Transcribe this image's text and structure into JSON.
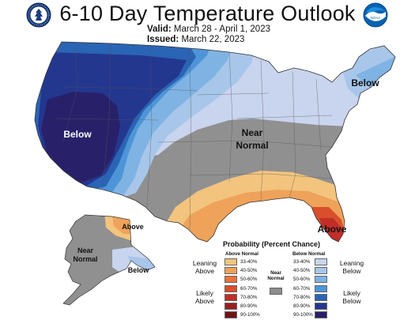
{
  "header": {
    "title": "6-10 Day Temperature Outlook",
    "valid_label": "Valid:",
    "valid_dates": "March 28 - April 1, 2023",
    "issued_label": "Issued:",
    "issued_date": "March 22, 2023"
  },
  "map_labels": {
    "below_west": "Below",
    "below_northeast": "Below",
    "near_normal_line1": "Near",
    "near_normal_line2": "Normal",
    "above_florida": "Above",
    "alaska_above": "Above",
    "alaska_near_line1": "Near",
    "alaska_near_line2": "Normal",
    "alaska_below": "Below"
  },
  "legend": {
    "title": "Probability (Percent Chance)",
    "above_header": "Above Normal",
    "below_header": "Below Normal",
    "near_header_line1": "Near",
    "near_header_line2": "Normal",
    "leaning_above_line1": "Leaning",
    "leaning_above_line2": "Above",
    "likely_above_line1": "Likely",
    "likely_above_line2": "Above",
    "leaning_below_line1": "Leaning",
    "leaning_below_line2": "Below",
    "likely_below_line1": "Likely",
    "likely_below_line2": "Below",
    "ranges": [
      "33-40%",
      "40-50%",
      "50-60%",
      "60-70%",
      "70-80%",
      "80-90%",
      "90-100%"
    ],
    "above_colors": [
      "#f2c47e",
      "#eea25a",
      "#e8743a",
      "#d94e2b",
      "#c12e28",
      "#9a1e22",
      "#6e1416"
    ],
    "below_colors": [
      "#c9d4ee",
      "#a7c6ea",
      "#7fb3e3",
      "#4e95d8",
      "#2a64b5",
      "#24378f",
      "#28216a"
    ],
    "near_color": "#8c8c8c"
  },
  "colors": {
    "below_33_40": "#c9d4ee",
    "below_40_50": "#a7c6ea",
    "below_50_60": "#7fb3e3",
    "below_60_70": "#4e95d8",
    "below_70_80": "#2a64b5",
    "below_80_90": "#24378f",
    "below_90_100": "#28216a",
    "near_normal": "#909090",
    "above_33_40": "#f2c47e",
    "above_40_50": "#eea25a",
    "above_50_60": "#e8743a",
    "above_60_70": "#d94e2b",
    "above_70_80": "#c12e28"
  },
  "icons": {
    "left_logo": "noaa-commerce-seal-icon",
    "right_logo": "noaa-logo-icon"
  }
}
